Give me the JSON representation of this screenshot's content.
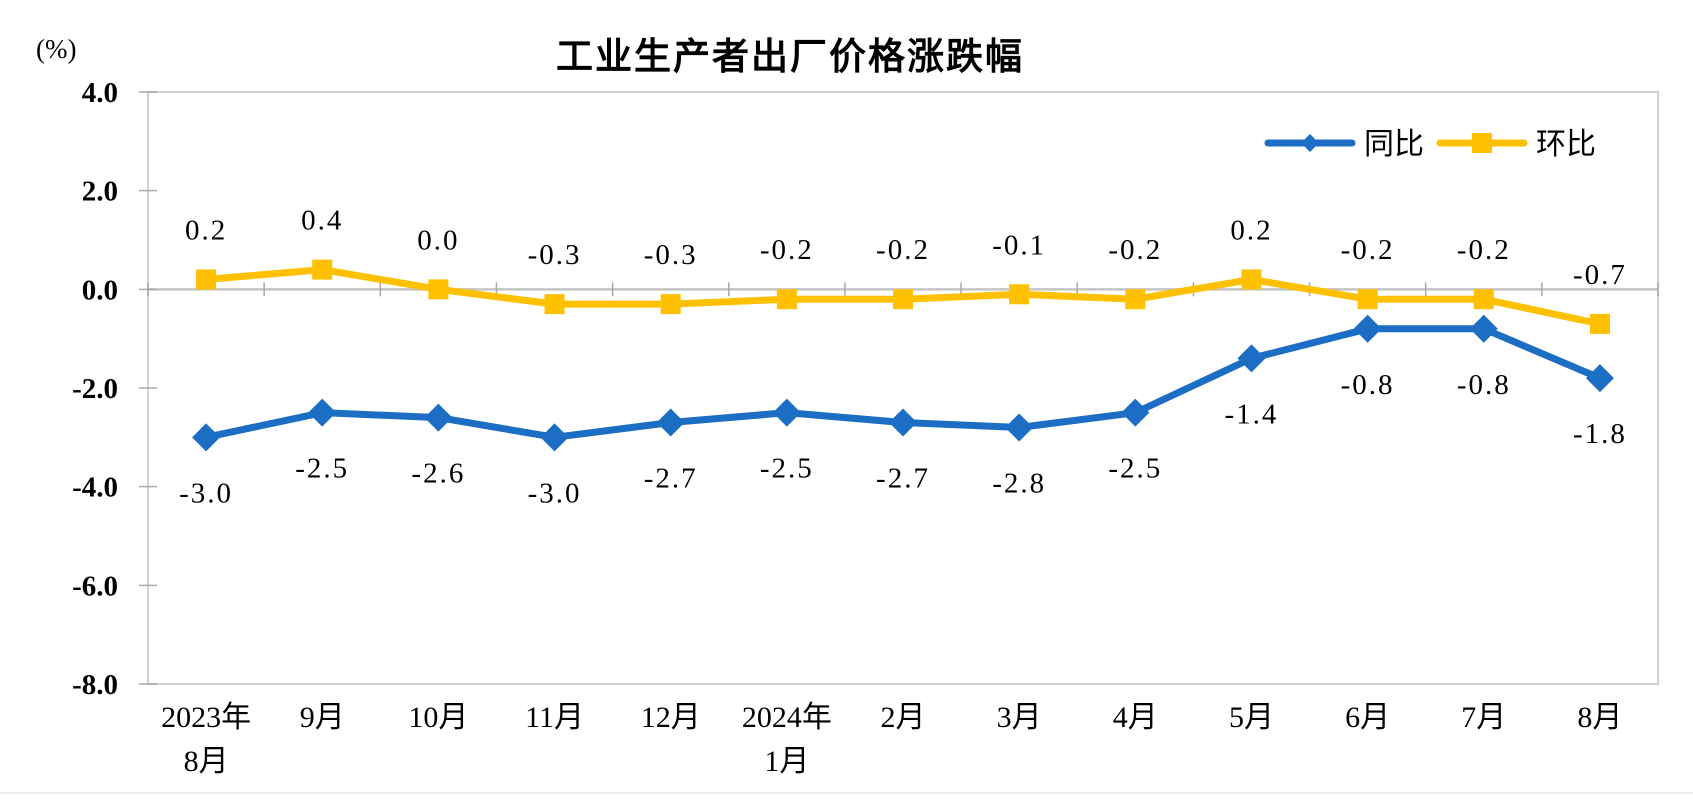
{
  "page": {
    "background": "#ffffff"
  },
  "header": {
    "unit_label": "(%)"
  },
  "chart_data": {
    "type": "line",
    "title": "工业生产者出厂价格涨跌幅",
    "xlabel": "",
    "ylabel": "(%)",
    "categories": [
      "2023年\n8月",
      "9月",
      "10月",
      "11月",
      "12月",
      "2024年\n1月",
      "2月",
      "3月",
      "4月",
      "5月",
      "6月",
      "7月",
      "8月"
    ],
    "series": [
      {
        "key": "yoy",
        "name": "同比",
        "color": "#1c6dc4",
        "marker": "diamond",
        "label_position": "below",
        "values": [
          -3.0,
          -2.5,
          -2.6,
          -3.0,
          -2.7,
          -2.5,
          -2.7,
          -2.8,
          -2.5,
          -1.4,
          -0.8,
          -0.8,
          -1.8
        ],
        "labels": [
          "-3.0",
          "-2.5",
          "-2.6",
          "-3.0",
          "-2.7",
          "-2.5",
          "-2.7",
          "-2.8",
          "-2.5",
          "-1.4",
          "-0.8",
          "-0.8",
          "-1.8"
        ]
      },
      {
        "key": "mom",
        "name": "环比",
        "color": "#ffc000",
        "marker": "square",
        "label_position": "above",
        "values": [
          0.2,
          0.4,
          0.0,
          -0.3,
          -0.3,
          -0.2,
          -0.2,
          -0.1,
          -0.2,
          0.2,
          -0.2,
          -0.2,
          -0.7
        ],
        "labels": [
          "0.2",
          "0.4",
          "0.0",
          "-0.3",
          "-0.3",
          "-0.2",
          "-0.2",
          "-0.1",
          "-0.2",
          "0.2",
          "-0.2",
          "-0.2",
          "-0.7"
        ]
      }
    ],
    "ylim": [
      -8.0,
      4.0
    ],
    "y_ticks": [
      4.0,
      2.0,
      0.0,
      -2.0,
      -4.0,
      -6.0,
      -8.0
    ],
    "y_tick_labels": [
      "4.0",
      "2.0",
      "0.0",
      "-2.0",
      "-4.0",
      "-6.0",
      "-8.0"
    ],
    "grid": "zero-line-only",
    "legend_position": "top-right-inside"
  },
  "colors": {
    "plot_border": "#d2d2d2",
    "zero_line": "#c4c4c4",
    "axis_tick": "#a9a9a9",
    "text": "#000000"
  }
}
